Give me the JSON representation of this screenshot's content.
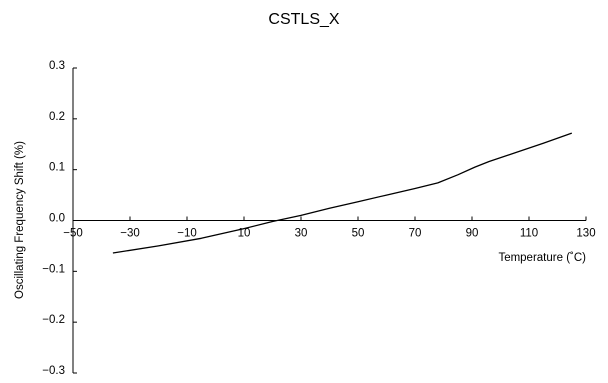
{
  "chart_data": {
    "type": "line",
    "title": "CSTLS_X",
    "xlabel": "Temperature (˚C)",
    "ylabel": "Oscillating Frequency Shift (%)",
    "xlim": [
      -50,
      130
    ],
    "ylim": [
      -0.3,
      0.3
    ],
    "x_ticks": [
      -50,
      -30,
      -10,
      10,
      30,
      50,
      70,
      90,
      110,
      130
    ],
    "x_tick_labels": [
      "−50",
      "−30",
      "−10",
      "10",
      "30",
      "50",
      "70",
      "90",
      "110",
      "130"
    ],
    "y_ticks": [
      0.3,
      0.2,
      0.1,
      0.0,
      -0.1,
      -0.2,
      -0.3
    ],
    "y_tick_labels": [
      "0.3",
      "0.2",
      "0.1",
      "0.0",
      "−0.1",
      "−0.2",
      "−0.3"
    ],
    "grid": false,
    "legend": "none",
    "series": [
      {
        "x": [
          -36,
          -20,
          -5,
          10,
          20,
          30,
          40,
          50,
          60,
          70,
          78,
          85,
          91,
          96,
          105,
          115,
          125
        ],
        "y": [
          -0.064,
          -0.05,
          -0.035,
          -0.016,
          -0.002,
          0.01,
          0.024,
          0.037,
          0.05,
          0.063,
          0.074,
          0.09,
          0.105,
          0.116,
          0.133,
          0.152,
          0.172
        ]
      }
    ]
  }
}
